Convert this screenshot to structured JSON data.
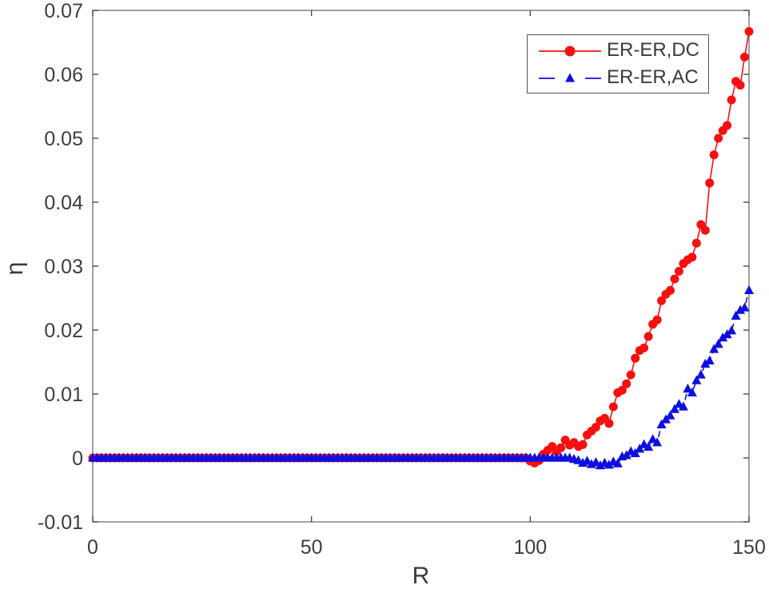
{
  "chart_data": {
    "type": "line",
    "title": "",
    "xlabel": "R",
    "ylabel": "η",
    "xlim": [
      0,
      150
    ],
    "ylim": [
      -0.01,
      0.07
    ],
    "grid": false,
    "legend_position": "top-right",
    "x_tick_values": [
      0,
      50,
      100,
      150
    ],
    "x_tick_labels": [
      "0",
      "50",
      "100",
      "150"
    ],
    "y_tick_values": [
      -0.01,
      0,
      0.01,
      0.02,
      0.03,
      0.04,
      0.05,
      0.06,
      0.07
    ],
    "y_tick_labels": [
      "-0.01",
      "0",
      "0.01",
      "0.02",
      "0.03",
      "0.04",
      "0.05",
      "0.06",
      "0.07"
    ],
    "x": [
      0,
      1,
      2,
      3,
      4,
      5,
      6,
      7,
      8,
      9,
      10,
      11,
      12,
      13,
      14,
      15,
      16,
      17,
      18,
      19,
      20,
      21,
      22,
      23,
      24,
      25,
      26,
      27,
      28,
      29,
      30,
      31,
      32,
      33,
      34,
      35,
      36,
      37,
      38,
      39,
      40,
      41,
      42,
      43,
      44,
      45,
      46,
      47,
      48,
      49,
      50,
      51,
      52,
      53,
      54,
      55,
      56,
      57,
      58,
      59,
      60,
      61,
      62,
      63,
      64,
      65,
      66,
      67,
      68,
      69,
      70,
      71,
      72,
      73,
      74,
      75,
      76,
      77,
      78,
      79,
      80,
      81,
      82,
      83,
      84,
      85,
      86,
      87,
      88,
      89,
      90,
      91,
      92,
      93,
      94,
      95,
      96,
      97,
      98,
      99,
      100,
      101,
      102,
      103,
      104,
      105,
      106,
      107,
      108,
      109,
      110,
      111,
      112,
      113,
      114,
      115,
      116,
      117,
      118,
      119,
      120,
      121,
      122,
      123,
      124,
      125,
      126,
      127,
      128,
      129,
      130,
      131,
      132,
      133,
      134,
      135,
      136,
      137,
      138,
      139,
      140,
      141,
      142,
      143,
      144,
      145,
      146,
      147,
      148,
      149,
      150
    ],
    "series": [
      {
        "name": "ER-ER,DC",
        "color": "#f80f0f",
        "marker": "circle",
        "line_style": "solid",
        "values": [
          0,
          0,
          0,
          0,
          0,
          0,
          0,
          0,
          0,
          0,
          0,
          0,
          0,
          0,
          0,
          0,
          0,
          0,
          0,
          0,
          0,
          0,
          0,
          0,
          0,
          0,
          0,
          0,
          0,
          0,
          0,
          0,
          0,
          0,
          0,
          0,
          0,
          0,
          0,
          0,
          0,
          0,
          0,
          0,
          0,
          0,
          0,
          0,
          0,
          0,
          0,
          0,
          0,
          0,
          0,
          0,
          0,
          0,
          0,
          0,
          0,
          0,
          0,
          0,
          0,
          0,
          0,
          0,
          0,
          0,
          0,
          0,
          0,
          0,
          0,
          0,
          0,
          0,
          0,
          0,
          0,
          0,
          0,
          0,
          0,
          0,
          0,
          0,
          0,
          0,
          0,
          0,
          0,
          0,
          0,
          0,
          0,
          0,
          0,
          0,
          -0.0005,
          -0.0008,
          -0.0004,
          0.0006,
          0.0012,
          0.0018,
          0.001,
          0.0016,
          0.0028,
          0.002,
          0.0024,
          0.0018,
          0.0021,
          0.0036,
          0.0042,
          0.0048,
          0.0058,
          0.0062,
          0.0054,
          0.008,
          0.0102,
          0.0106,
          0.0116,
          0.013,
          0.0156,
          0.0168,
          0.0172,
          0.019,
          0.0209,
          0.0216,
          0.0246,
          0.0256,
          0.0262,
          0.028,
          0.0292,
          0.0304,
          0.031,
          0.0314,
          0.0336,
          0.0365,
          0.0356,
          0.043,
          0.0474,
          0.05,
          0.0512,
          0.052,
          0.056,
          0.0589,
          0.0583,
          0.0627,
          0.0667
        ]
      },
      {
        "name": "ER-ER,AC",
        "color": "#0f0fe0",
        "marker": "triangle-up",
        "line_style": "dashed",
        "values": [
          0,
          0,
          0,
          0,
          0,
          0,
          0,
          0,
          0,
          0,
          0,
          0,
          0,
          0,
          0,
          0,
          0,
          0,
          0,
          0,
          0,
          0,
          0,
          0,
          0,
          0,
          0,
          0,
          0,
          0,
          0,
          0,
          0,
          0,
          0,
          0,
          0,
          0,
          0,
          0,
          0,
          0,
          0,
          0,
          0,
          0,
          0,
          0,
          0,
          0,
          0,
          0,
          0,
          0,
          0,
          0,
          0,
          0,
          0,
          0,
          0,
          0,
          0,
          0,
          0,
          0,
          0,
          0,
          0,
          0,
          0,
          0,
          0,
          0,
          0,
          0,
          0,
          0,
          0,
          0,
          0,
          0,
          0,
          0,
          0,
          0,
          0,
          0,
          0,
          0,
          0,
          0,
          0,
          0,
          0,
          0,
          0,
          0,
          0,
          0,
          0,
          0,
          0,
          0,
          0,
          0,
          0,
          0,
          0,
          0,
          -0.0002,
          -0.0004,
          -0.0008,
          -0.0005,
          -0.001,
          -0.0007,
          -0.0012,
          -0.0008,
          -0.0011,
          -0.0006,
          -0.0009,
          0.0002,
          0.0004,
          0.001,
          0.0007,
          0.0014,
          0.0021,
          0.0017,
          0.0029,
          0.0024,
          0.0052,
          0.006,
          0.0066,
          0.0076,
          0.0084,
          0.008,
          0.0108,
          0.0102,
          0.0121,
          0.013,
          0.0147,
          0.0152,
          0.017,
          0.0178,
          0.0188,
          0.0193,
          0.0199,
          0.0222,
          0.0231,
          0.0235,
          0.0262
        ]
      }
    ]
  }
}
